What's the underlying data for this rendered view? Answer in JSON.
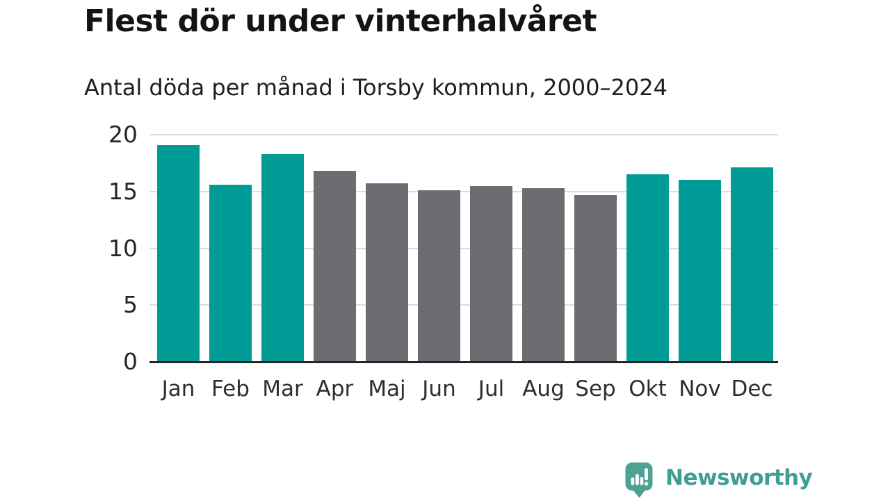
{
  "chart_data": {
    "type": "bar",
    "title": "Flest dör under vinterhalvåret",
    "subtitle": "Antal döda per månad i Torsby kommun, 2000–2024",
    "categories": [
      "Jan",
      "Feb",
      "Mar",
      "Apr",
      "Maj",
      "Jun",
      "Jul",
      "Aug",
      "Sep",
      "Okt",
      "Nov",
      "Dec"
    ],
    "values": [
      19.1,
      15.6,
      18.3,
      16.8,
      15.7,
      15.1,
      15.5,
      15.3,
      14.7,
      16.5,
      16.0,
      17.1
    ],
    "bar_colors": [
      "#009b94",
      "#009b94",
      "#009b94",
      "#6e6c72",
      "#6e6c72",
      "#6e6c72",
      "#6e6c72",
      "#6e6c72",
      "#6e6c72",
      "#009b94",
      "#009b94",
      "#009b94"
    ],
    "winter_months": [
      "Jan",
      "Feb",
      "Mar",
      "Okt",
      "Nov",
      "Dec"
    ],
    "summer_months": [
      "Apr",
      "Maj",
      "Jun",
      "Jul",
      "Aug",
      "Sep"
    ],
    "xlabel": "",
    "ylabel": "",
    "ylim": [
      0,
      20
    ],
    "yticks": [
      0,
      5,
      10,
      15,
      20
    ],
    "grid": "horizontal-light-gray",
    "legend": "none"
  },
  "colors": {
    "winter_bar": "#009b94",
    "summer_bar": "#6e6c72",
    "grid_line": "#dcdcdc",
    "axis_line": "#262626",
    "title_text": "#141414",
    "tick_text": "#2e2e2e",
    "logo_icon_teal": "#4da295",
    "logo_text_teal": "#3f9e93"
  },
  "branding": {
    "logo_text": "Newsworthy"
  }
}
